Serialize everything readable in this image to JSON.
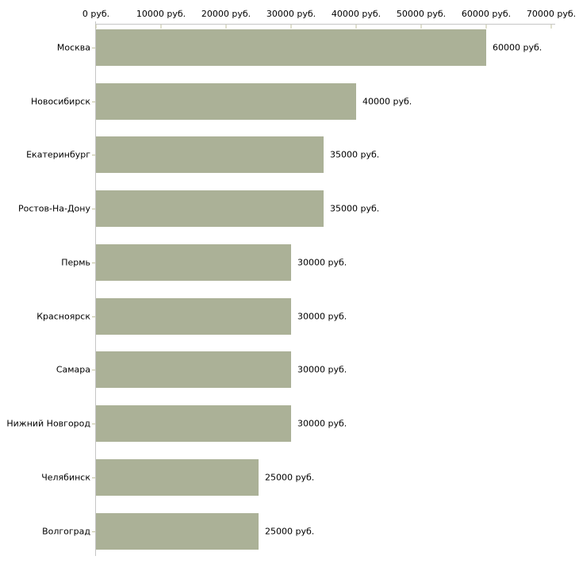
{
  "chart_data": {
    "type": "bar",
    "orientation": "horizontal",
    "title": "",
    "categories": [
      "Москва",
      "Новосибирск",
      "Екатеринбург",
      "Ростов-На-Дону",
      "Пермь",
      "Красноярск",
      "Самара",
      "Нижний Новгород",
      "Челябинск",
      "Волгоград"
    ],
    "values": [
      60000,
      40000,
      35000,
      35000,
      30000,
      30000,
      30000,
      30000,
      25000,
      25000
    ],
    "value_labels": [
      "60000 руб.",
      "40000 руб.",
      "35000 руб.",
      "35000 руб.",
      "30000 руб.",
      "30000 руб.",
      "30000 руб.",
      "30000 руб.",
      "25000 руб.",
      "25000 руб."
    ],
    "unit": "руб.",
    "xlabel": "",
    "ylabel": "",
    "xlim": [
      0,
      70000
    ],
    "x_ticks": [
      0,
      10000,
      20000,
      30000,
      40000,
      50000,
      60000,
      70000
    ],
    "x_tick_labels": [
      "0 руб.",
      "10000 руб.",
      "20000 руб.",
      "30000 руб.",
      "40000 руб.",
      "50000 руб.",
      "60000 руб.",
      "70000 руб."
    ],
    "grid": false,
    "legend": false,
    "colors": {
      "bar": "#abb197",
      "axis_line": "#c6c6c6",
      "tick_mark": "#c2c29e",
      "text": "#000000",
      "background": "#ffffff"
    }
  }
}
